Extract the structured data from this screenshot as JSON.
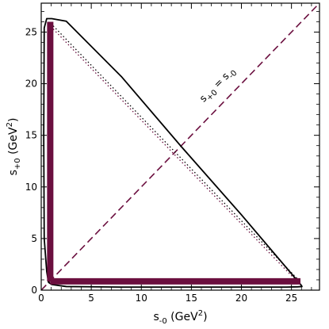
{
  "chart_data": {
    "type": "line",
    "title": "",
    "xlabel": {
      "base": "s",
      "sub": "-0",
      "unit": " (GeV",
      "exp": "2",
      "close": ")"
    },
    "ylabel": {
      "base": "s",
      "sub": "+0",
      "unit": " (GeV",
      "exp": "2",
      "close": ")"
    },
    "xlim": [
      0,
      27.8
    ],
    "ylim": [
      0,
      27.8
    ],
    "xticks": [
      0,
      5,
      10,
      15,
      20,
      25
    ],
    "yticks": [
      0,
      5,
      10,
      15,
      20,
      25
    ],
    "xtick_labels": [
      "0",
      "5",
      "10",
      "15",
      "20",
      "25"
    ],
    "ytick_labels": [
      "0",
      "5",
      "10",
      "15",
      "20",
      "25"
    ],
    "annotation": {
      "part1_base": "s",
      "part1_sub": "+0",
      "eq": " = ",
      "part2_base": "s",
      "part2_sub": "-0",
      "x": 17.8,
      "y": 19.7
    },
    "colors": {
      "accent": "#6b0f3f",
      "boundary": "#000000"
    },
    "series": [
      {
        "style": "solid-black",
        "x": [
          26.0,
          20.0,
          14.0,
          8.0,
          2.5,
          1.05,
          0.55,
          0.3,
          0.25,
          0.3,
          0.55,
          0.72,
          0.75,
          0.78,
          1.05,
          2.5,
          8.0,
          14.0,
          20.0,
          24.5,
          25.6,
          26.05,
          26.0
        ],
        "y": [
          0.45,
          7.3,
          13.9,
          20.7,
          26.05,
          26.3,
          26.3,
          25.4,
          15.0,
          5.0,
          1.8,
          0.78,
          0.75,
          0.72,
          0.55,
          0.35,
          0.3,
          0.3,
          0.3,
          0.3,
          0.32,
          0.35,
          0.45
        ]
      },
      {
        "style": "dotted-black",
        "x": [
          1.2,
          25.6
        ],
        "y": [
          25.6,
          1.1
        ]
      },
      {
        "style": "dotted-accent",
        "x": [
          1.2,
          25.3
        ],
        "y": [
          25.3,
          1.1
        ]
      },
      {
        "style": "dashed-accent",
        "x": [
          0.0,
          27.8
        ],
        "y": [
          0.0,
          27.8
        ]
      },
      {
        "style": "band-vertical-accent",
        "x": [
          0.9,
          0.9
        ],
        "y": [
          0.85,
          26.0
        ]
      },
      {
        "style": "band-horizontal-accent",
        "x": [
          0.9,
          25.9
        ],
        "y": [
          0.85,
          0.85
        ]
      }
    ]
  }
}
